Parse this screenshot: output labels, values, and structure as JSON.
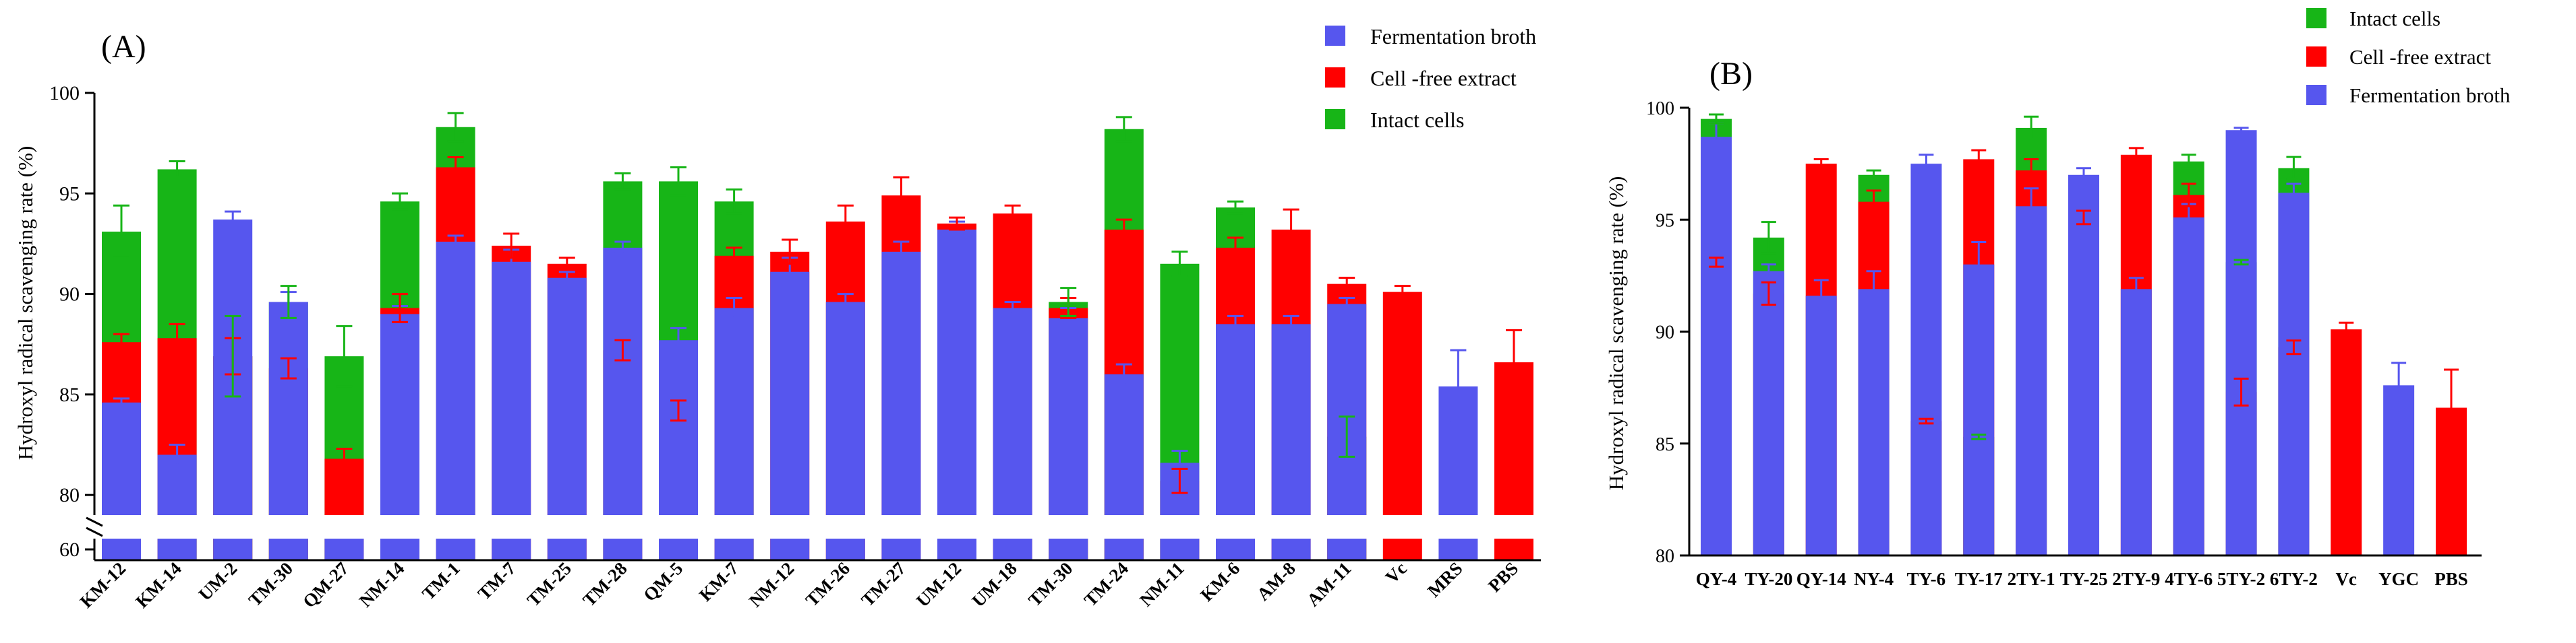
{
  "colors": {
    "fermentation": "#5656ee",
    "cell_free": "#ff0000",
    "intact": "#17b517",
    "axis": "#000000"
  },
  "chart_data": [
    {
      "type": "bar",
      "panel_label": "(A)",
      "ylabel": "Hydroxyl radical scavenging rate (%)",
      "ylim_upper": [
        79,
        100
      ],
      "ylim_lower": [
        58,
        62
      ],
      "axis_break": true,
      "yticks": [
        "80",
        "85",
        "90",
        "95",
        "100"
      ],
      "ytick_lower": "60",
      "legend_position": "top-right",
      "legend": [
        {
          "key": "fermentation",
          "label": "Fermentation broth"
        },
        {
          "key": "cell_free",
          "label": "Cell -free extract"
        },
        {
          "key": "intact",
          "label": "Intact cells"
        }
      ],
      "categories": [
        "KM-12",
        "KM-14",
        "UM-2",
        "TM-30",
        "QM-27",
        "NM-14",
        "TM-1",
        "TM-7",
        "TM-25",
        "TM-28",
        "QM-5",
        "KM-7",
        "NM-12",
        "TM-26",
        "TM-27",
        "UM-12",
        "UM-18",
        "TM-30",
        "TM-24",
        "NM-11",
        "KM-6",
        "AM-8",
        "AM-11",
        "Vc",
        "MRS",
        "PBS"
      ],
      "series": [
        {
          "key": "fermentation",
          "name": "Fermentation broth",
          "values": [
            84.6,
            82.0,
            93.7,
            89.6,
            59.0,
            89.0,
            92.6,
            91.6,
            90.8,
            92.3,
            87.7,
            89.3,
            91.1,
            89.6,
            92.1,
            93.2,
            89.3,
            88.8,
            86.0,
            81.6,
            88.5,
            88.5,
            89.5,
            null,
            85.4,
            null
          ],
          "errors": [
            0.2,
            0.5,
            0.4,
            0.5,
            0.3,
            0.4,
            0.3,
            0.6,
            0.3,
            0.3,
            0.6,
            0.5,
            0.7,
            0.4,
            0.5,
            0.4,
            0.3,
            0.5,
            0.5,
            0.6,
            0.4,
            0.4,
            0.3,
            null,
            1.8,
            null
          ]
        },
        {
          "key": "cell_free",
          "name": "Cell -free extract",
          "values": [
            87.6,
            87.8,
            86.9,
            86.3,
            81.8,
            89.3,
            96.3,
            92.4,
            91.5,
            87.2,
            84.2,
            91.9,
            92.1,
            93.6,
            94.9,
            93.5,
            94.0,
            89.3,
            93.2,
            80.7,
            92.3,
            93.2,
            90.5,
            90.1,
            null,
            86.6
          ],
          "errors": [
            0.4,
            0.7,
            0.9,
            0.5,
            0.5,
            0.7,
            0.5,
            0.6,
            0.3,
            0.5,
            0.5,
            0.4,
            0.6,
            0.8,
            0.9,
            0.3,
            0.4,
            0.5,
            0.5,
            0.6,
            0.5,
            1.0,
            0.3,
            0.3,
            null,
            1.6
          ]
        },
        {
          "key": "intact",
          "name": "Intact cells",
          "values": [
            93.1,
            96.2,
            86.9,
            89.6,
            86.9,
            94.6,
            98.3,
            null,
            null,
            95.6,
            95.6,
            94.6,
            null,
            null,
            null,
            null,
            null,
            89.6,
            98.2,
            91.5,
            94.3,
            null,
            82.9,
            null,
            null,
            null
          ],
          "errors": [
            1.3,
            0.4,
            2.0,
            0.8,
            1.5,
            0.4,
            0.7,
            null,
            null,
            0.4,
            0.7,
            0.6,
            null,
            null,
            null,
            null,
            null,
            0.7,
            0.6,
            0.6,
            0.3,
            null,
            1.0,
            null,
            null,
            null
          ]
        }
      ]
    },
    {
      "type": "bar",
      "panel_label": "(B)",
      "ylabel": "Hydroxyl radical scavenging rate (%)",
      "ylim": [
        80,
        100
      ],
      "yticks": [
        "80",
        "85",
        "90",
        "95",
        "100"
      ],
      "legend_position": "top-right",
      "legend": [
        {
          "key": "intact",
          "label": "Intact cells"
        },
        {
          "key": "cell_free",
          "label": "Cell -free extract"
        },
        {
          "key": "fermentation",
          "label": "Fermentation broth"
        }
      ],
      "categories": [
        "QY-4",
        "TY-20",
        "QY-14",
        "NY-4",
        "TY-6",
        "TY-17",
        "2TY-1",
        "TY-25",
        "2TY-9",
        "4TY-6",
        "5TY-2",
        "6TY-2",
        "Vc",
        "YGC",
        "PBS"
      ],
      "series": [
        {
          "key": "fermentation",
          "name": "Fermentation broth",
          "values": [
            98.7,
            92.7,
            91.6,
            91.9,
            97.5,
            93.0,
            95.6,
            97.0,
            91.9,
            95.1,
            99.0,
            96.2,
            null,
            87.6,
            null
          ],
          "errors": [
            0.6,
            0.3,
            0.7,
            0.8,
            0.4,
            1.0,
            0.8,
            0.3,
            0.5,
            0.6,
            0.1,
            0.4,
            null,
            1.0,
            null
          ]
        },
        {
          "key": "cell_free",
          "name": "Cell -free extract",
          "values": [
            93.1,
            91.7,
            97.5,
            95.8,
            86.0,
            97.7,
            97.2,
            95.1,
            97.9,
            96.1,
            87.3,
            89.3,
            90.1,
            null,
            86.6
          ],
          "errors": [
            0.2,
            0.5,
            0.2,
            0.5,
            0.1,
            0.4,
            0.5,
            0.3,
            0.3,
            0.5,
            0.6,
            0.3,
            0.3,
            null,
            1.7
          ]
        },
        {
          "key": "intact",
          "name": "Intact cells",
          "values": [
            99.5,
            94.2,
            null,
            97.0,
            null,
            85.3,
            99.1,
            null,
            null,
            97.6,
            93.1,
            97.3,
            null,
            null,
            null
          ],
          "errors": [
            0.2,
            0.7,
            null,
            0.2,
            null,
            0.1,
            0.5,
            null,
            null,
            0.3,
            0.1,
            0.5,
            null,
            null,
            null
          ]
        }
      ]
    }
  ]
}
